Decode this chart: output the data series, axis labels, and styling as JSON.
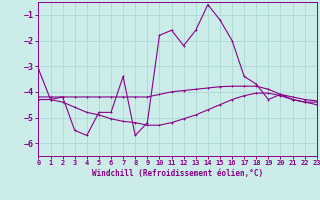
{
  "xlabel": "Windchill (Refroidissement éolien,°C)",
  "bg_color": "#ccecea",
  "grid_color": "#aad8d6",
  "line_color": "#880088",
  "xlim": [
    0,
    23
  ],
  "ylim": [
    -6.5,
    -0.5
  ],
  "yticks": [
    -6,
    -5,
    -4,
    -3,
    -2,
    -1
  ],
  "xticks": [
    0,
    1,
    2,
    3,
    4,
    5,
    6,
    7,
    8,
    9,
    10,
    11,
    12,
    13,
    14,
    15,
    16,
    17,
    18,
    19,
    20,
    21,
    22,
    23
  ],
  "line1_x": [
    0,
    1,
    2,
    3,
    4,
    5,
    6,
    7,
    8,
    9,
    10,
    11,
    12,
    13,
    14,
    15,
    16,
    17,
    18,
    19,
    20,
    21,
    22,
    23
  ],
  "line1_y": [
    -3.1,
    -4.3,
    -4.2,
    -5.5,
    -5.7,
    -4.8,
    -4.8,
    -3.4,
    -5.7,
    -5.2,
    -1.8,
    -1.6,
    -2.2,
    -1.6,
    -0.6,
    -1.2,
    -2.0,
    -3.4,
    -3.7,
    -4.3,
    -4.1,
    -4.3,
    -4.4,
    -4.4
  ],
  "line2_x": [
    0,
    1,
    2,
    3,
    4,
    5,
    6,
    7,
    8,
    9,
    10,
    11,
    12,
    13,
    14,
    15,
    16,
    17,
    18,
    19,
    20,
    21,
    22,
    23
  ],
  "line2_y": [
    -4.2,
    -4.2,
    -4.2,
    -4.2,
    -4.2,
    -4.2,
    -4.2,
    -4.2,
    -4.2,
    -4.2,
    -4.1,
    -4.0,
    -3.95,
    -3.9,
    -3.85,
    -3.8,
    -3.78,
    -3.78,
    -3.78,
    -3.9,
    -4.1,
    -4.2,
    -4.3,
    -4.35
  ],
  "line3_x": [
    0,
    1,
    2,
    3,
    4,
    5,
    6,
    7,
    8,
    9,
    10,
    11,
    12,
    13,
    14,
    15,
    16,
    17,
    18,
    19,
    20,
    21,
    22,
    23
  ],
  "line3_y": [
    -4.3,
    -4.3,
    -4.4,
    -4.6,
    -4.8,
    -4.9,
    -5.05,
    -5.15,
    -5.2,
    -5.3,
    -5.3,
    -5.2,
    -5.05,
    -4.9,
    -4.7,
    -4.5,
    -4.3,
    -4.15,
    -4.05,
    -4.05,
    -4.15,
    -4.3,
    -4.4,
    -4.5
  ]
}
